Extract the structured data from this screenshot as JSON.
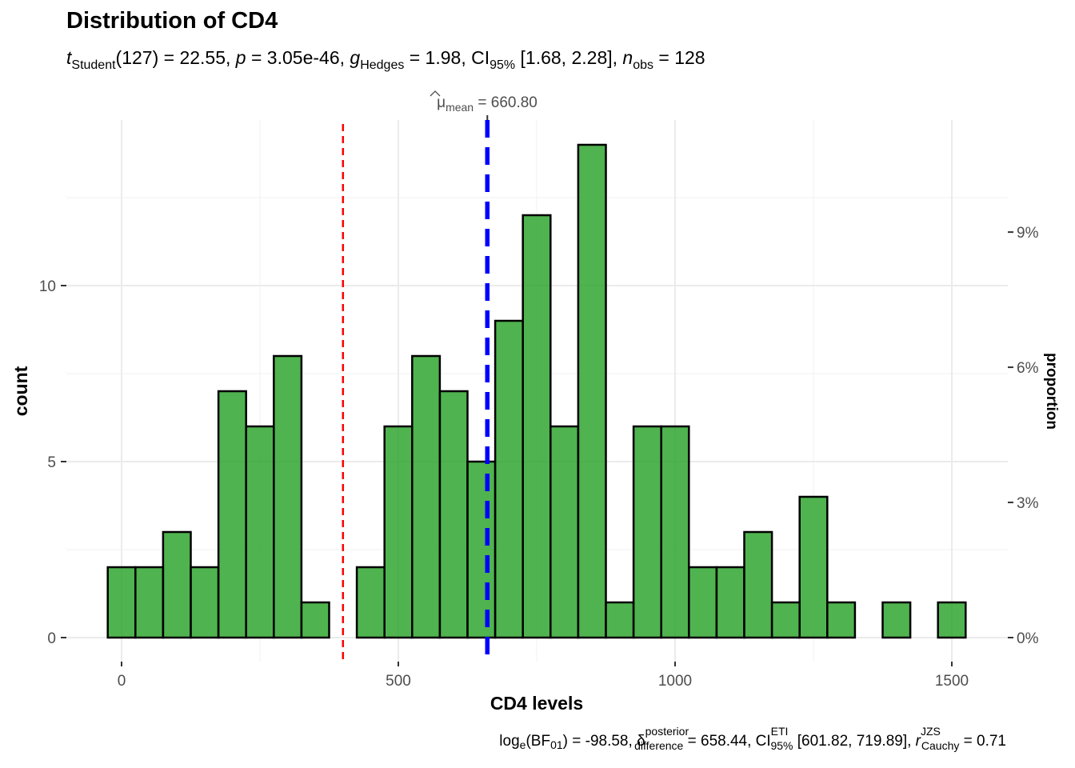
{
  "chart_data": {
    "type": "histogram",
    "title": "Distribution of CD4",
    "subtitle": {
      "t_sym": "t",
      "t_sub": "Student",
      "t_val": "(127) = 22.55, ",
      "p_sym": "p",
      "p_val": " = 3.05e-46, ",
      "g_sym": "g",
      "g_sub": "Hedges",
      "g_val": " = 1.98, CI",
      "ci_sub": "95%",
      "ci_val": " [1.68, 2.28], ",
      "n_sym": "n",
      "n_sub": "obs",
      "n_val": " = 128"
    },
    "xlabel": "CD4 levels",
    "ylabel": "count",
    "ylabel_right": "proportion",
    "xlim": [
      -100,
      1600
    ],
    "ylim": [
      -0.7,
      14.8
    ],
    "x_ticks": [
      0,
      500,
      1000,
      1500
    ],
    "x_tick_labels": [
      "0",
      "500",
      "1000",
      "1500"
    ],
    "y_ticks": [
      0,
      5,
      10
    ],
    "y_tick_labels": [
      "0",
      "5",
      "10"
    ],
    "y2_ticks": [
      0,
      3,
      6,
      9
    ],
    "y2_tick_labels": [
      "0%",
      "3%",
      "6%",
      "9%"
    ],
    "total_n": 128,
    "bin_width": 50,
    "bin_centers": [
      0,
      50,
      100,
      150,
      200,
      250,
      300,
      350,
      400,
      450,
      500,
      550,
      600,
      650,
      700,
      750,
      800,
      850,
      900,
      950,
      1000,
      1050,
      1100,
      1150,
      1200,
      1250,
      1300,
      1350,
      1400,
      1450,
      1500
    ],
    "counts": [
      2,
      2,
      3,
      2,
      7,
      6,
      8,
      1,
      0,
      2,
      6,
      8,
      7,
      5,
      9,
      12,
      6,
      14,
      1,
      6,
      6,
      2,
      2,
      3,
      1,
      4,
      1,
      0,
      1,
      0,
      1
    ],
    "mean_line": {
      "x": 660.8,
      "label_sym": "μ",
      "label_sub": "mean",
      "label_val": " = 660.80",
      "color": "#0000ff"
    },
    "test_value_line": {
      "x": 400,
      "color": "#ff0000"
    },
    "caption": {
      "bf_pre": "log",
      "bf_e": "e",
      "bf_open": "(",
      "bf_core": "BF",
      "bf_01": "01",
      "bf_close": ")",
      "bf_val": " = -98.58, ",
      "delta_sym": "δ",
      "delta_sup": "posterior",
      "delta_sub": "difference",
      "delta_val": " = 658.44, CI",
      "ci_sup": "ETI",
      "ci_sub": "95%",
      "ci_val": " [601.82, 719.89], ",
      "r_sym": "r",
      "r_sup": "JZS",
      "r_sub": "Cauchy",
      "r_val": " = 0.71"
    },
    "colors": {
      "bar_fill": "#1a9c1a",
      "bar_outline": "#000000",
      "mean": "#0000ff",
      "test_value": "#ff0000"
    }
  }
}
